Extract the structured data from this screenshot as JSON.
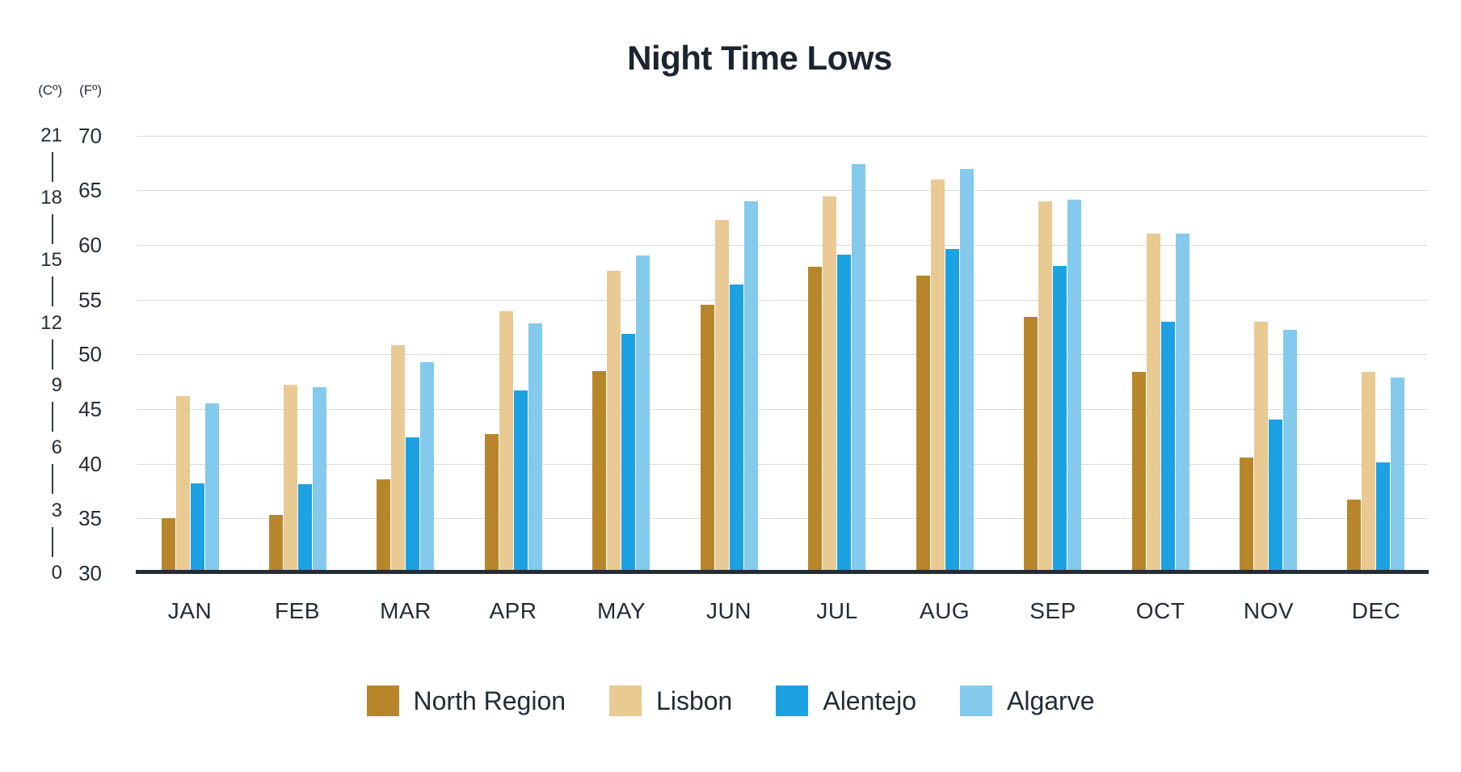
{
  "title": "Night Time Lows",
  "axes": {
    "celsius_unit_label": "(Cº)",
    "fahrenheit_unit_label": "(Fº)",
    "fahrenheit_ticks": [
      70,
      65,
      60,
      55,
      50,
      45,
      40,
      35,
      30
    ],
    "celsius_ticks": [
      21,
      18,
      15,
      12,
      9,
      6,
      3,
      0
    ]
  },
  "colors": {
    "north_region": "#b7862a",
    "lisbon": "#e9ca93",
    "alentejo": "#1ca1e2",
    "algarve": "#83caec",
    "text": "#222c37",
    "gridline": "#d7dadd",
    "baseline": "#242c35",
    "background": "#ffffff"
  },
  "chart_data": {
    "type": "bar",
    "title": "Night Time Lows",
    "categories": [
      "JAN",
      "FEB",
      "MAR",
      "APR",
      "MAY",
      "JUN",
      "JUL",
      "AUG",
      "SEP",
      "OCT",
      "NOV",
      "DEC"
    ],
    "series": [
      {
        "name": "North Region",
        "color": "#b7862a",
        "values_f": [
          35.0,
          35.3,
          38.6,
          42.7,
          48.5,
          54.5,
          58.0,
          57.2,
          53.4,
          48.4,
          40.6,
          36.7
        ]
      },
      {
        "name": "Lisbon",
        "color": "#e9ca93",
        "values_f": [
          46.2,
          47.2,
          50.8,
          53.9,
          57.6,
          62.3,
          64.4,
          66.0,
          64.0,
          61.0,
          53.0,
          48.4
        ]
      },
      {
        "name": "Alentejo",
        "color": "#1ca1e2",
        "values_f": [
          38.2,
          38.1,
          42.4,
          46.7,
          51.9,
          56.4,
          59.1,
          59.6,
          58.1,
          53.0,
          44.0,
          40.1
        ]
      },
      {
        "name": "Algarve",
        "color": "#83caec",
        "values_f": [
          45.5,
          47.0,
          49.3,
          52.8,
          59.0,
          64.0,
          67.4,
          66.9,
          64.1,
          61.0,
          52.2,
          47.9
        ]
      }
    ],
    "ylabel_left": "(Cº)",
    "ylabel_right": "(Fº)",
    "ylim_f": [
      30,
      70
    ],
    "ylim_c": [
      0,
      21
    ],
    "y_ticks_f": [
      30,
      35,
      40,
      45,
      50,
      55,
      60,
      65,
      70
    ],
    "y_ticks_c": [
      0,
      3,
      6,
      9,
      12,
      15,
      18,
      21
    ],
    "grid": "horizontal",
    "legend_position": "bottom",
    "unit": "°F (left scale °C)"
  }
}
